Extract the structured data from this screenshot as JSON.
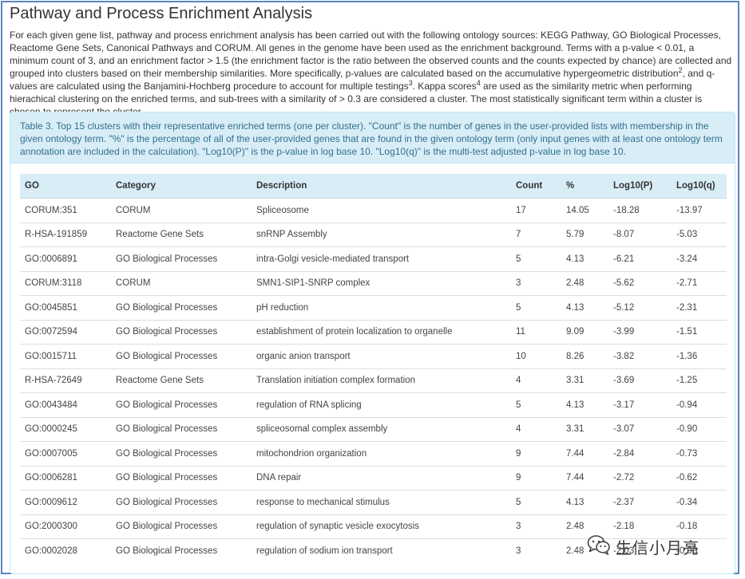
{
  "page": {
    "title": "Pathway and Process Enrichment Analysis",
    "intro": {
      "part1": "For each given gene list, pathway and process enrichment analysis has been carried out with the following ontology sources: KEGG Pathway, GO Biological Processes, Reactome Gene Sets, Canonical Pathways and CORUM. All genes in the genome have been used as the enrichment background. Terms with a p-value < 0.01, a minimum count of 3, and an enrichment factor > 1.5 (the enrichment factor is the ratio between the observed counts and the counts expected by chance) are collected and grouped into clusters based on their membership similarities. More specifically, p-values are calculated based on the accumulative hypergeometric distribution",
      "sup1": "2",
      "part2": ", and q-values are calculated using the Banjamini-Hochberg procedure to account for multiple testings",
      "sup2": "3",
      "part3": ". Kappa scores",
      "sup3": "4",
      "part4": " are used as the similarity metric when performing hierachical clustering on the enriched terms, and sub-trees with a similarity of > 0.3 are considered a cluster. The most statistically significant term within a cluster is chosen to represent the cluster."
    }
  },
  "table": {
    "caption": "Table 3. Top 15 clusters with their representative enriched terms (one per cluster). \"Count\" is the number of genes in the user-provided lists with membership in the given ontology term. \"%\" is the percentage of all of the user-provided genes that are found in the given ontology term (only input genes with at least one ontology term annotation are included in the calculation). \"Log10(P)\" is the p-value in log base 10. \"Log10(q)\" is the multi-test adjusted p-value in log base 10.",
    "headers": [
      "GO",
      "Category",
      "Description",
      "Count",
      "%",
      "Log10(P)",
      "Log10(q)"
    ],
    "rows": [
      [
        "CORUM:351",
        "CORUM",
        "Spliceosome",
        "17",
        "14.05",
        "-18.28",
        "-13.97"
      ],
      [
        "R-HSA-191859",
        "Reactome Gene Sets",
        "snRNP Assembly",
        "7",
        "5.79",
        "-8.07",
        "-5.03"
      ],
      [
        "GO:0006891",
        "GO Biological Processes",
        "intra-Golgi vesicle-mediated transport",
        "5",
        "4.13",
        "-6.21",
        "-3.24"
      ],
      [
        "CORUM:3118",
        "CORUM",
        "SMN1-SIP1-SNRP complex",
        "3",
        "2.48",
        "-5.62",
        "-2.71"
      ],
      [
        "GO:0045851",
        "GO Biological Processes",
        "pH reduction",
        "5",
        "4.13",
        "-5.12",
        "-2.31"
      ],
      [
        "GO:0072594",
        "GO Biological Processes",
        "establishment of protein localization to organelle",
        "11",
        "9.09",
        "-3.99",
        "-1.51"
      ],
      [
        "GO:0015711",
        "GO Biological Processes",
        "organic anion transport",
        "10",
        "8.26",
        "-3.82",
        "-1.36"
      ],
      [
        "R-HSA-72649",
        "Reactome Gene Sets",
        "Translation initiation complex formation",
        "4",
        "3.31",
        "-3.69",
        "-1.25"
      ],
      [
        "GO:0043484",
        "GO Biological Processes",
        "regulation of RNA splicing",
        "5",
        "4.13",
        "-3.17",
        "-0.94"
      ],
      [
        "GO:0000245",
        "GO Biological Processes",
        "spliceosomal complex assembly",
        "4",
        "3.31",
        "-3.07",
        "-0.90"
      ],
      [
        "GO:0007005",
        "GO Biological Processes",
        "mitochondrion organization",
        "9",
        "7.44",
        "-2.84",
        "-0.73"
      ],
      [
        "GO:0006281",
        "GO Biological Processes",
        "DNA repair",
        "9",
        "7.44",
        "-2.72",
        "-0.62"
      ],
      [
        "GO:0009612",
        "GO Biological Processes",
        "response to mechanical stimulus",
        "5",
        "4.13",
        "-2.37",
        "-0.34"
      ],
      [
        "GO:2000300",
        "GO Biological Processes",
        "regulation of synaptic vesicle exocytosis",
        "3",
        "2.48",
        "-2.18",
        "-0.18"
      ],
      [
        "GO:0002028",
        "GO Biological Processes",
        "regulation of sodium ion transport",
        "3",
        "2.48",
        "-2.03",
        "-0.08"
      ]
    ]
  },
  "watermark": {
    "text": "生信小月亮",
    "icon": "wechat-icon"
  }
}
